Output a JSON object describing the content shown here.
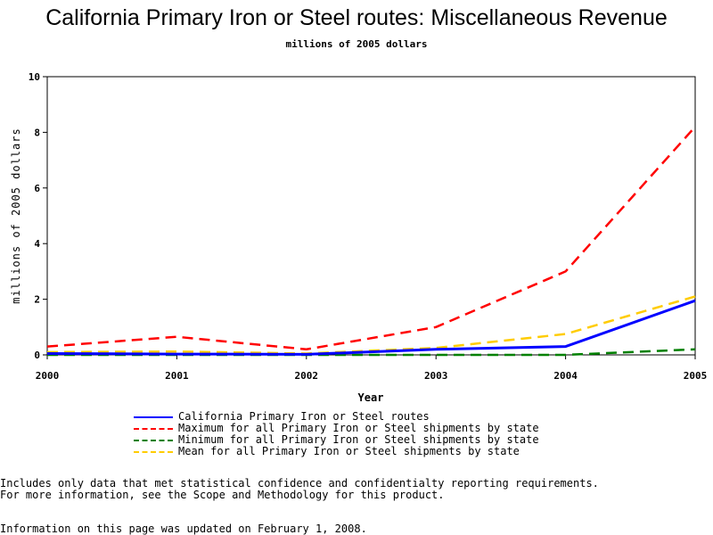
{
  "chart_data": {
    "type": "line",
    "title": "California Primary Iron or Steel routes: Miscellaneous Revenue",
    "subtitle": "millions of 2005 dollars",
    "xlabel": "Year",
    "ylabel": "millions of 2005 dollars",
    "x": [
      2000,
      2001,
      2002,
      2003,
      2004,
      2005
    ],
    "xlim": [
      2000,
      2005
    ],
    "ylim": [
      0,
      10
    ],
    "yticks": [
      0,
      2,
      4,
      6,
      8,
      10
    ],
    "grid": false,
    "legend_position": "bottom",
    "series": [
      {
        "name": "California Primary Iron or Steel routes",
        "color": "#0000ff",
        "style": "solid",
        "values": [
          0.05,
          0.03,
          0.02,
          0.2,
          0.3,
          1.95
        ]
      },
      {
        "name": "Maximum for all Primary Iron or Steel shipments by state",
        "color": "#ff0000",
        "style": "dashed",
        "values": [
          0.3,
          0.65,
          0.2,
          1.0,
          3.0,
          8.2
        ]
      },
      {
        "name": "Minimum for all Primary Iron or Steel shipments by state",
        "color": "#008000",
        "style": "dashed",
        "values": [
          0.0,
          0.0,
          0.0,
          0.0,
          0.0,
          0.2
        ]
      },
      {
        "name": "Mean for all Primary Iron or Steel shipments by state",
        "color": "#ffcc00",
        "style": "dashed",
        "values": [
          0.1,
          0.12,
          0.05,
          0.25,
          0.75,
          2.1
        ]
      }
    ]
  },
  "notes": [
    "Includes only data that met statistical confidence and confidentialty reporting requirements.",
    "For more information, see the Scope and Methodology for this product."
  ],
  "updated": "Information on this page was updated on February 1, 2008."
}
